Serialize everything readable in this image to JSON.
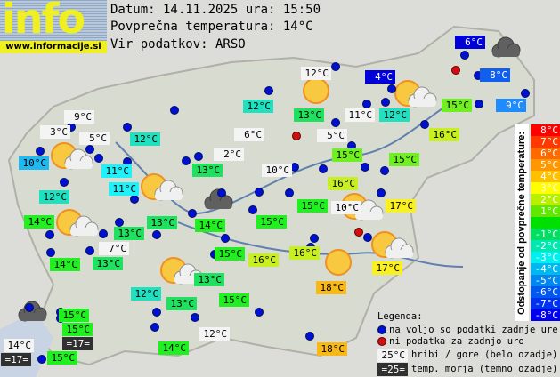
{
  "logo": {
    "big": "info",
    "url": "www.informacije.si"
  },
  "header": {
    "date_line": "Datum: 14.11.2025 ura: 15:50",
    "avg_line": "Povprečna temperatura: 14°C",
    "source_line": "Vir podatkov: ARSO"
  },
  "stations": [
    "9°C",
    "3°C",
    "5°C",
    "12°C",
    "6°C",
    "2°C",
    "10°C",
    "11°C",
    "13°C",
    "10°C",
    "16°C",
    "15°C",
    "15°C",
    "11°C",
    "12°C",
    "14°C",
    "13°C",
    "14°C",
    "15°C",
    "15°C",
    "10°C",
    "17°C",
    "13°C",
    "7°C",
    "14°C",
    "13°C",
    "15°C",
    "16°C",
    "16°C",
    "17°C",
    "18°C",
    "13°C",
    "12°C",
    "13°C",
    "15°C",
    "12°C",
    "14°C",
    "18°C",
    "15°C",
    "15°C",
    "=17=",
    "14°C",
    "=17=",
    "15°C",
    "12°C",
    "4°C",
    "6°C",
    "8°C",
    "9°C",
    "12°C",
    "13°C",
    "11°C",
    "12°C",
    "15°C",
    "16°C",
    "5°C"
  ],
  "scale": {
    "title": "Odstopanje od povprečne temperature:",
    "steps": [
      {
        "label": "8°C",
        "color": "#ff0000"
      },
      {
        "label": "7°C",
        "color": "#ff3800"
      },
      {
        "label": "6°C",
        "color": "#ff6a00"
      },
      {
        "label": "5°C",
        "color": "#ff9800"
      },
      {
        "label": "4°C",
        "color": "#ffc000"
      },
      {
        "label": "3°C",
        "color": "#ffff00"
      },
      {
        "label": "2°C",
        "color": "#b8f000"
      },
      {
        "label": "1°C",
        "color": "#60e800"
      },
      {
        "label": "",
        "color": "#00e000"
      },
      {
        "label": "-1°C",
        "color": "#00e060"
      },
      {
        "label": "-2°C",
        "color": "#00e8b0"
      },
      {
        "label": "-3°C",
        "color": "#00f0f0"
      },
      {
        "label": "-4°C",
        "color": "#00b8f0"
      },
      {
        "label": "-5°C",
        "color": "#0088f0"
      },
      {
        "label": "-6°C",
        "color": "#0058f0"
      },
      {
        "label": "-7°C",
        "color": "#0030f0"
      },
      {
        "label": "-8°C",
        "color": "#0000f0"
      }
    ]
  },
  "legend": {
    "title": "Legenda:",
    "available": "na voljo so podatki zadnje ure",
    "missing": "ni podatka za zadnjo uro",
    "mountain_sample": "25°C",
    "mountain": "hribi / gore (belo ozadje)",
    "sea_sample": "=25=",
    "sea": "temp. morja (temno ozadje)"
  },
  "colors": {
    "available_dot": "#0010d0",
    "missing_dot": "#d01010"
  }
}
